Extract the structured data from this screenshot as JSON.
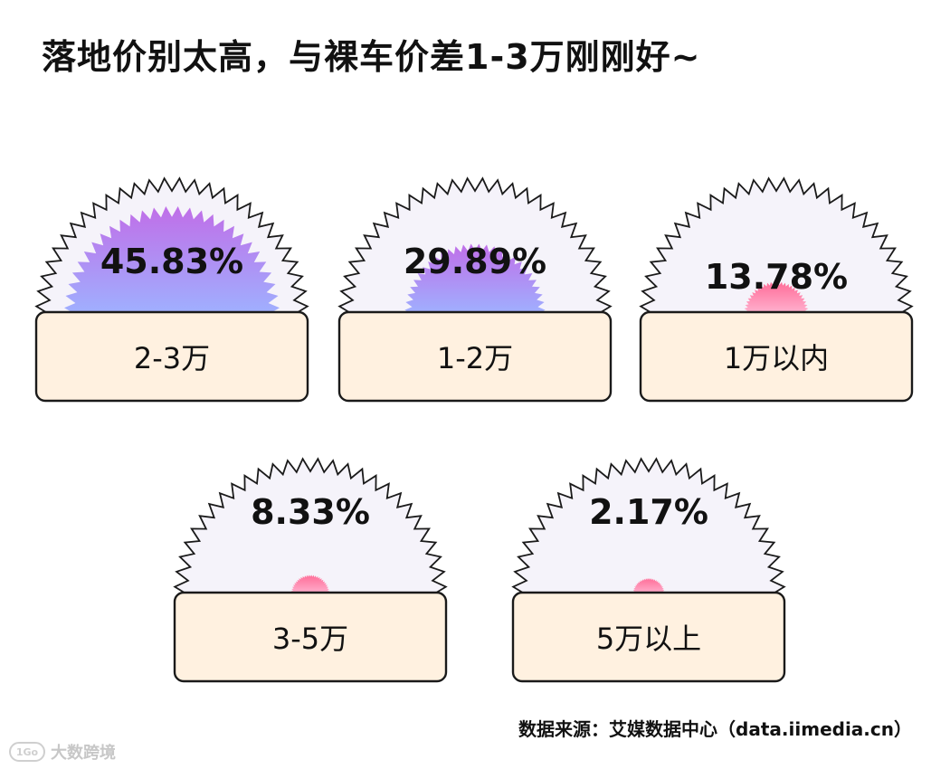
{
  "title": "落地价别太高，与裸车价差1-3万刚刚好~",
  "source": "数据来源：艾媒数据中心（data.iimedia.cn）",
  "watermark": {
    "logo": "1Go",
    "text": "大数跨境"
  },
  "colors": {
    "purple_top": "#c06ee8",
    "purple_bottom": "#9fb0ff",
    "pink_top": "#ff6c97",
    "pink_bottom": "#ffb3d0",
    "burst_fill": "#f5f3fa",
    "card_fill": "#fff1e0",
    "outline": "#1a1a1a"
  },
  "chart_data": {
    "type": "bar",
    "categories": [
      "2-3万",
      "1-2万",
      "1万以内",
      "3-5万",
      "5万以上"
    ],
    "values": [
      45.83,
      29.89,
      13.78,
      8.33,
      2.17
    ],
    "labels": [
      "45.83%",
      "29.89%",
      "13.78%",
      "8.33%",
      "2.17%"
    ],
    "unit": "%",
    "ylim": [
      0,
      50
    ],
    "legend": "none",
    "grid": false
  }
}
